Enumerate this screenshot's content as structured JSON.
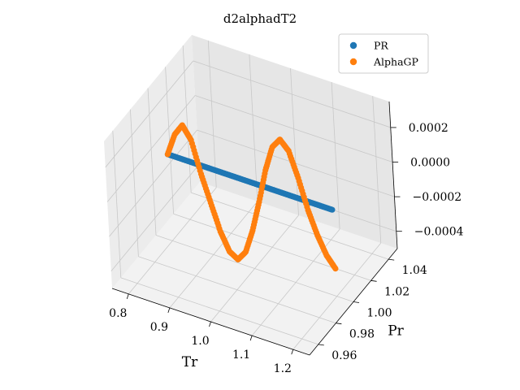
{
  "chart_data": {
    "type": "scatter",
    "projection": "3d",
    "title": "d2alphadT2",
    "xlabel": "Tr",
    "ylabel": "Pr",
    "zlabel": "",
    "xlim": [
      0.76,
      1.24
    ],
    "ylim": [
      0.95,
      1.05
    ],
    "zlim": [
      -0.0005,
      0.00035
    ],
    "xticks": [
      "0.8",
      "0.9",
      "1.0",
      "1.1",
      "1.2"
    ],
    "yticks": [
      "0.96",
      "0.98",
      "1.00",
      "1.02",
      "1.04"
    ],
    "zticks": [
      "−0.0004",
      "−0.0002",
      "0.0000",
      "0.0002"
    ],
    "grid": true,
    "legend_position": "top-right",
    "series": [
      {
        "name": "PR",
        "color": "#1f77b4",
        "points": [
          [
            0.8,
            1.0,
            0.0
          ],
          [
            0.82,
            1.0,
            0.0
          ],
          [
            0.84,
            1.0,
            0.0
          ],
          [
            0.86,
            1.0,
            0.0
          ],
          [
            0.88,
            1.0,
            0.0
          ],
          [
            0.9,
            1.0,
            0.0
          ],
          [
            0.92,
            1.0,
            0.0
          ],
          [
            0.94,
            1.0,
            0.0
          ],
          [
            0.96,
            1.0,
            0.0
          ],
          [
            0.98,
            1.0,
            0.0
          ],
          [
            1.0,
            1.0,
            0.0
          ],
          [
            1.02,
            1.0,
            0.0
          ],
          [
            1.04,
            1.0,
            0.0
          ],
          [
            1.06,
            1.0,
            0.0
          ],
          [
            1.08,
            1.0,
            0.0
          ],
          [
            1.1,
            1.0,
            0.0
          ],
          [
            1.12,
            1.0,
            0.0
          ],
          [
            1.14,
            1.0,
            0.0
          ],
          [
            1.16,
            1.0,
            0.0
          ],
          [
            1.18,
            1.0,
            0.0
          ],
          [
            1.2,
            1.0,
            0.0
          ]
        ]
      },
      {
        "name": "AlphaGP",
        "color": "#ff7f0e",
        "points": [
          [
            0.8,
            1.0,
            0.0
          ],
          [
            0.82,
            1.0,
            0.00013
          ],
          [
            0.84,
            1.0,
            0.0002
          ],
          [
            0.86,
            1.0,
            0.00013
          ],
          [
            0.88,
            1.0,
            -5e-05
          ],
          [
            0.9,
            1.0,
            -0.0002
          ],
          [
            0.92,
            1.0,
            -0.00035
          ],
          [
            0.94,
            1.0,
            -0.00045
          ],
          [
            0.96,
            1.0,
            -0.00048
          ],
          [
            0.98,
            1.0,
            -0.00042
          ],
          [
            1.0,
            1.0,
            -0.00028
          ],
          [
            1.02,
            1.0,
            -0.0001
          ],
          [
            1.04,
            1.0,
            0.0001
          ],
          [
            1.06,
            1.0,
            0.00025
          ],
          [
            1.08,
            1.0,
            0.00031
          ],
          [
            1.1,
            1.0,
            0.00026
          ],
          [
            1.12,
            1.0,
            0.00012
          ],
          [
            1.14,
            1.0,
            -5e-05
          ],
          [
            1.16,
            1.0,
            -0.00018
          ],
          [
            1.18,
            1.0,
            -0.00028
          ],
          [
            1.2,
            1.0,
            -0.00034
          ]
        ]
      }
    ]
  }
}
